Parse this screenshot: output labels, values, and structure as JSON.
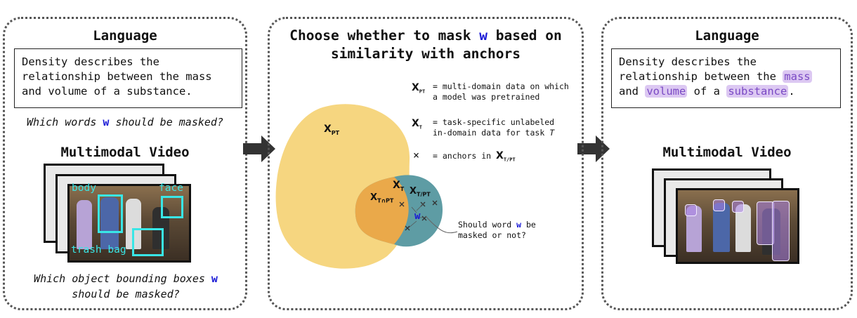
{
  "left_panel": {
    "language_title": "Language",
    "sentence": "Density describes the relationship between the mass and volume of a substance.",
    "words_question_pre": "Which words",
    "words_question_w": "w",
    "words_question_post": "should be masked?",
    "video_title": "Multimodal Video",
    "box_labels": {
      "body": "body",
      "face": "face",
      "trash_bag": "trash bag"
    },
    "boxes_question_pre": "Which object bounding boxes",
    "boxes_question_w": "w",
    "boxes_question_post": "should be masked?"
  },
  "middle_panel": {
    "title_pre": "Choose whether to mask",
    "title_w": "w",
    "title_post": "based on similarity with anchors",
    "labels": {
      "x_pt": "X",
      "x_pt_sub": "PT",
      "x_t": "X",
      "x_t_sub": "T",
      "x_t_pt": "X",
      "x_t_pt_sub": "T/PT",
      "x_tnpt": "X",
      "x_tnpt_sub": "T∩PT",
      "w": "w"
    },
    "legend": [
      {
        "sym": "X",
        "sub": "PT",
        "text": "= multi-domain data on which a model was pretrained"
      },
      {
        "sym": "X",
        "sub": "T",
        "text": "= task-specific unlabeled in-domain data for task",
        "italic_tail": "T"
      },
      {
        "sym": "×",
        "sub": "",
        "text": "= anchors in",
        "tail_sym": "X",
        "tail_sub": "T/PT"
      }
    ],
    "callout_pre": "Should word",
    "callout_w": "w",
    "callout_post": "be masked or not?",
    "colors": {
      "pt": "#f6d680",
      "intersect": "#eaa94a",
      "t_only": "#5e9ca4",
      "w": "#1a1ad6"
    }
  },
  "right_panel": {
    "language_title": "Language",
    "sentence_parts": [
      {
        "text": "Density describes the relationship between the ",
        "masked": false
      },
      {
        "text": "mass",
        "masked": true
      },
      {
        "text": " and ",
        "masked": false
      },
      {
        "text": "volume",
        "masked": true
      },
      {
        "text": " of a ",
        "masked": false
      },
      {
        "text": "substance",
        "masked": true
      },
      {
        "text": ".",
        "masked": false
      }
    ],
    "video_title": "Multimodal Video",
    "mask_color": "#b28ae8"
  }
}
